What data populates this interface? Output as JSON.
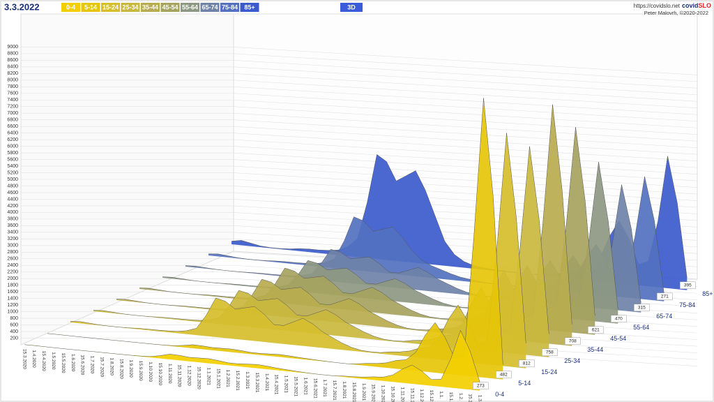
{
  "header": {
    "date": "3.3.2022",
    "view_button": "3D",
    "site_url": "https://covidslo.net",
    "brand_part1": "covid",
    "brand_part2": "SLO",
    "author": "Peter Malovrh, ©2020-2022"
  },
  "chart_data": {
    "type": "ridge3d",
    "categories": [
      "15.3.2020",
      "1.4.2020",
      "15.4.2020",
      "1.5.2020",
      "15.5.2020",
      "1.6.2020",
      "15.6.2020",
      "1.7.2020",
      "15.7.2020",
      "1.8.2020",
      "15.8.2020",
      "1.9.2020",
      "15.9.2020",
      "1.10.2020",
      "15.10.2020",
      "1.11.2020",
      "15.11.2020",
      "1.12.2020",
      "15.12.2020",
      "1.1.2021",
      "15.1.2021",
      "1.2.2021",
      "15.2.2021",
      "1.3.2021",
      "15.3.2021",
      "1.4.2021",
      "15.4.2021",
      "1.5.2021",
      "15.5.2021",
      "1.6.2021",
      "15.6.2021",
      "1.7.2021",
      "15.7.2021",
      "1.8.2021",
      "15.8.2021",
      "1.9.2021",
      "15.9.2021",
      "1.10.2021",
      "15.10.2021",
      "1.11.2021",
      "15.11.2021",
      "1.12.2021",
      "15.12.",
      "1.1.",
      "15.1.",
      "1.2.",
      "15.2.",
      "1.3."
    ],
    "ylim": [
      0,
      9000
    ],
    "yticks": [
      200,
      400,
      600,
      800,
      1000,
      1200,
      1400,
      1600,
      1800,
      2000,
      2200,
      2400,
      2600,
      2800,
      3000,
      3200,
      3400,
      3600,
      3800,
      4000,
      4200,
      4400,
      4600,
      4800,
      5000,
      5200,
      5400,
      5600,
      5800,
      6000,
      6200,
      6400,
      6600,
      6800,
      7000,
      7200,
      7400,
      7600,
      7800,
      8000,
      8200,
      8400,
      8600,
      8800,
      9000
    ],
    "grid": true,
    "series": [
      {
        "name": "0-4",
        "color": "#f2cf00",
        "values": [
          5,
          8,
          5,
          2,
          1,
          1,
          2,
          4,
          5,
          5,
          6,
          8,
          15,
          31,
          92,
          173,
          163,
          133,
          143,
          153,
          122,
          82,
          82,
          102,
          122,
          102,
          71,
          51,
          31,
          15,
          6,
          4,
          6,
          31,
          41,
          61,
          102,
          122,
          224,
          449,
          612,
          449,
          204,
          245,
          950,
          1900,
          1250,
          273
        ]
      },
      {
        "name": "5-14",
        "color": "#e6c60a",
        "values": [
          3,
          5,
          3,
          1,
          1,
          1,
          1,
          3,
          3,
          3,
          4,
          5,
          10,
          20,
          61,
          116,
          109,
          88,
          95,
          102,
          82,
          54,
          54,
          68,
          82,
          68,
          48,
          34,
          20,
          10,
          4,
          3,
          33,
          82,
          109,
          163,
          272,
          326,
          598,
          1197,
          1632,
          1197,
          544,
          653,
          4550,
          9100,
          5900,
          482
        ]
      },
      {
        "name": "15-24",
        "color": "#d6be2c",
        "values": [
          37,
          59,
          37,
          15,
          8,
          8,
          15,
          30,
          37,
          37,
          45,
          59,
          112,
          224,
          673,
          1272,
          1197,
          972,
          1047,
          1122,
          898,
          598,
          598,
          748,
          898,
          748,
          524,
          374,
          224,
          112,
          45,
          30,
          37,
          92,
          122,
          184,
          306,
          367,
          673,
          1346,
          1836,
          1346,
          612,
          734,
          3800,
          7600,
          4900,
          812
        ]
      },
      {
        "name": "25-34",
        "color": "#c9b83e",
        "values": [
          34,
          54,
          34,
          14,
          7,
          7,
          14,
          27,
          34,
          34,
          41,
          54,
          102,
          204,
          612,
          1156,
          1088,
          884,
          952,
          1020,
          816,
          544,
          544,
          680,
          816,
          680,
          476,
          340,
          204,
          102,
          41,
          27,
          41,
          102,
          136,
          204,
          340,
          408,
          748,
          1496,
          2040,
          1496,
          680,
          816,
          3400,
          6800,
          4420,
          758
        ]
      },
      {
        "name": "35-44",
        "color": "#b8ad4e",
        "values": [
          34,
          54,
          34,
          14,
          7,
          7,
          14,
          27,
          34,
          34,
          41,
          54,
          102,
          204,
          612,
          1156,
          1088,
          884,
          952,
          1020,
          816,
          544,
          544,
          680,
          816,
          680,
          476,
          340,
          204,
          102,
          41,
          27,
          45,
          112,
          150,
          224,
          374,
          449,
          823,
          1646,
          2244,
          1646,
          748,
          898,
          3900,
          7800,
          5000,
          708
        ]
      },
      {
        "name": "45-54",
        "color": "#a6a35e",
        "values": [
          34,
          54,
          34,
          14,
          7,
          7,
          14,
          27,
          34,
          34,
          41,
          54,
          102,
          204,
          612,
          1156,
          1088,
          884,
          952,
          1020,
          816,
          544,
          544,
          680,
          816,
          680,
          476,
          340,
          204,
          102,
          41,
          27,
          41,
          102,
          136,
          204,
          340,
          408,
          748,
          1496,
          2040,
          1496,
          680,
          816,
          3350,
          6700,
          4300,
          621
        ]
      },
      {
        "name": "55-64",
        "color": "#8d9882",
        "values": [
          31,
          49,
          31,
          13,
          6,
          6,
          13,
          24,
          31,
          31,
          37,
          49,
          92,
          184,
          551,
          1040,
          979,
          796,
          857,
          918,
          734,
          490,
          490,
          612,
          734,
          612,
          428,
          306,
          184,
          92,
          37,
          24,
          37,
          92,
          122,
          184,
          306,
          367,
          673,
          1346,
          1836,
          1346,
          612,
          734,
          2600,
          5200,
          3300,
          470
        ]
      },
      {
        "name": "65-74",
        "color": "#6f82a8",
        "values": [
          31,
          49,
          31,
          13,
          6,
          6,
          13,
          24,
          31,
          31,
          37,
          49,
          92,
          184,
          551,
          1040,
          979,
          796,
          857,
          918,
          734,
          490,
          490,
          612,
          734,
          612,
          428,
          306,
          184,
          92,
          37,
          24,
          33,
          82,
          109,
          163,
          272,
          326,
          598,
          1197,
          1632,
          1197,
          544,
          653,
          2050,
          4100,
          2700,
          315
        ]
      },
      {
        "name": "75-84",
        "color": "#5371c0",
        "values": [
          51,
          81,
          51,
          21,
          10,
          10,
          21,
          41,
          51,
          51,
          61,
          81,
          153,
          306,
          918,
          1734,
          1632,
          1326,
          1428,
          1530,
          1224,
          816,
          544,
          400,
          300,
          200,
          120,
          80,
          50,
          25,
          10,
          7,
          33,
          82,
          109,
          163,
          272,
          326,
          598,
          1197,
          1632,
          1197,
          544,
          653,
          2000,
          4000,
          2600,
          271
        ]
      },
      {
        "name": "85+",
        "color": "#3b5bcc",
        "values": [
          100,
          160,
          100,
          40,
          20,
          20,
          40,
          80,
          100,
          100,
          120,
          160,
          300,
          600,
          1800,
          3400,
          3200,
          2600,
          2800,
          3000,
          2400,
          1600,
          800,
          400,
          200,
          100,
          60,
          40,
          30,
          20,
          10,
          7,
          41,
          102,
          136,
          204,
          340,
          408,
          748,
          1496,
          2040,
          1496,
          680,
          816,
          2150,
          4300,
          2800,
          395
        ]
      }
    ]
  }
}
